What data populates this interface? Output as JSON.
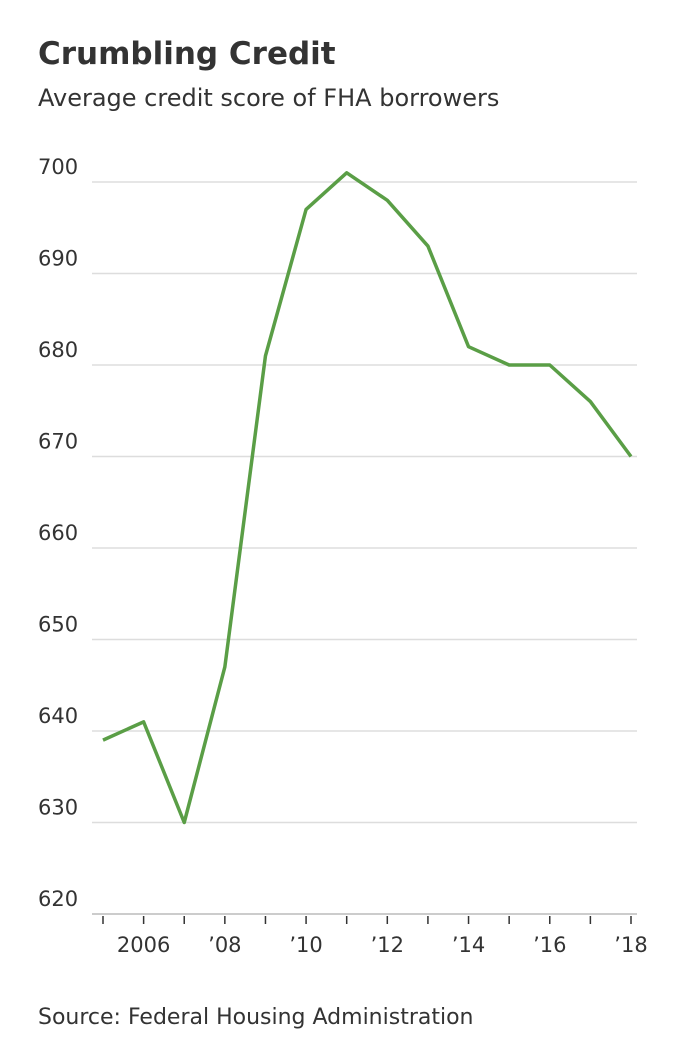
{
  "chart_data": {
    "type": "line",
    "title": "Crumbling Credit",
    "subtitle": "Average credit score of FHA borrowers",
    "source": "Source: Federal Housing Administration",
    "x": [
      2005,
      2006,
      2007,
      2008,
      2009,
      2010,
      2011,
      2012,
      2013,
      2014,
      2015,
      2016,
      2017,
      2018
    ],
    "series": [
      {
        "color": "#5a9e46",
        "values": [
          639,
          641,
          630,
          647,
          681,
          697,
          701,
          698,
          693,
          682,
          680,
          680,
          676,
          670
        ]
      }
    ],
    "xlim": [
      2005,
      2018
    ],
    "xticks": [
      2006,
      {
        "value": 2008,
        "label": "’08"
      },
      {
        "value": 2010,
        "label": "’10"
      },
      {
        "value": 2012,
        "label": "’12"
      },
      {
        "value": 2014,
        "label": "’14"
      },
      {
        "value": 2016,
        "label": "’16"
      },
      {
        "value": 2018,
        "label": "’18"
      }
    ],
    "ylim": [
      620,
      700
    ],
    "yticks": [
      620,
      630,
      640,
      650,
      660,
      670,
      680,
      690,
      700
    ],
    "grid": true
  }
}
